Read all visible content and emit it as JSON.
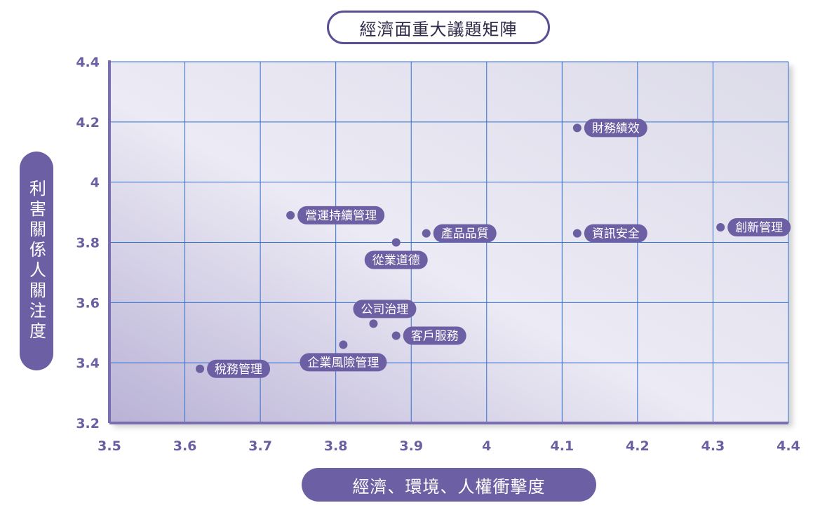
{
  "chart_data": {
    "type": "scatter",
    "title": "經濟面重大議題矩陣",
    "xlabel": "經濟、環境、人權衝擊度",
    "ylabel": "利害關係人關注度",
    "xlim": [
      3.5,
      4.4
    ],
    "ylim": [
      3.2,
      4.4
    ],
    "x_ticks": [
      "3.5",
      "3.6",
      "3.7",
      "3.8",
      "3.9",
      "4",
      "4.1",
      "4.2",
      "4.3",
      "4.4"
    ],
    "y_ticks": [
      "4.4",
      "4.2",
      "4",
      "3.8",
      "3.6",
      "3.4",
      "3.2"
    ],
    "grid": true,
    "points": [
      {
        "label": "財務績效",
        "x": 4.12,
        "y": 4.18
      },
      {
        "label": "營運持續管理",
        "x": 3.74,
        "y": 3.89
      },
      {
        "label": "產品品質",
        "x": 3.92,
        "y": 3.83
      },
      {
        "label": "從業道德",
        "x": 3.88,
        "y": 3.8
      },
      {
        "label": "資訊安全",
        "x": 4.12,
        "y": 3.83
      },
      {
        "label": "創新管理",
        "x": 4.31,
        "y": 3.85
      },
      {
        "label": "公司治理",
        "x": 3.85,
        "y": 3.53
      },
      {
        "label": "客戶服務",
        "x": 3.88,
        "y": 3.49
      },
      {
        "label": "企業風險管理",
        "x": 3.81,
        "y": 3.46
      },
      {
        "label": "稅務管理",
        "x": 3.62,
        "y": 3.38
      }
    ],
    "colors": {
      "point": "#6a5fa0",
      "label_bg": "#6d5fa3",
      "grid": "#2f6fd0",
      "axis": "#7a6db0"
    }
  }
}
